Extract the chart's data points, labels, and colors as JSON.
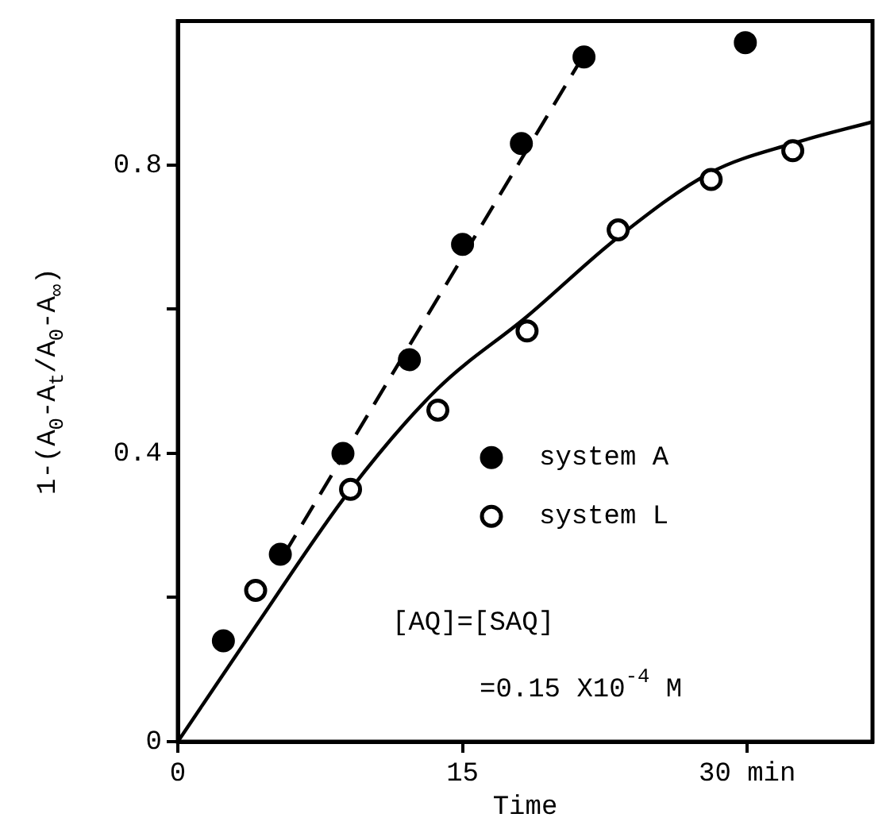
{
  "chart_data": {
    "type": "scatter",
    "xlabel": "Time",
    "ylabel": "1-(A$_{0}$-A$_{t}$/A$_{0}$-A$_{∞}$)",
    "xlim": [
      0,
      36.6
    ],
    "ylim": [
      0,
      1.0
    ],
    "xticks": [
      0,
      15,
      {
        "value": 30,
        "label": "30 min"
      }
    ],
    "yticks": [
      0,
      {
        "value": 0.2,
        "label": null
      },
      0.4,
      {
        "value": 0.6,
        "label": null
      },
      0.8
    ],
    "legend": "right",
    "annotations": [
      "[AQ]=[SAQ]",
      "=0.15 X10$^{-4}$ M"
    ],
    "series": [
      {
        "name": "system A",
        "marker": "circle",
        "color": "#000000",
        "x": [
          2.4,
          5.4,
          8.7,
          12.2,
          15.0,
          18.1,
          21.4,
          29.9
        ],
        "values": [
          0.14,
          0.26,
          0.4,
          0.53,
          0.69,
          0.83,
          0.95,
          0.97
        ]
      },
      {
        "name": "system L",
        "marker": "circle",
        "color": "#000000",
        "x": [
          4.1,
          9.1,
          13.7,
          18.4,
          23.2,
          28.1,
          32.4
        ],
        "values": [
          0.21,
          0.35,
          0.46,
          0.57,
          0.71,
          0.78,
          0.82
        ]
      },
      {
        "type": "line",
        "line_style": "dashed",
        "marker": "none",
        "color": "#000000",
        "x": [
          5.6,
          21.1
        ],
        "values": [
          0.26,
          0.94
        ]
      },
      {
        "type": "line",
        "line_style": "solid",
        "marker": "none",
        "color": "#000000",
        "x": [
          0,
          4.1,
          9.1,
          13.7,
          18.4,
          23.2,
          28.1,
          32.4,
          36.6
        ],
        "values": [
          0,
          0.16,
          0.35,
          0.49,
          0.59,
          0.7,
          0.79,
          0.83,
          0.86
        ]
      }
    ]
  }
}
